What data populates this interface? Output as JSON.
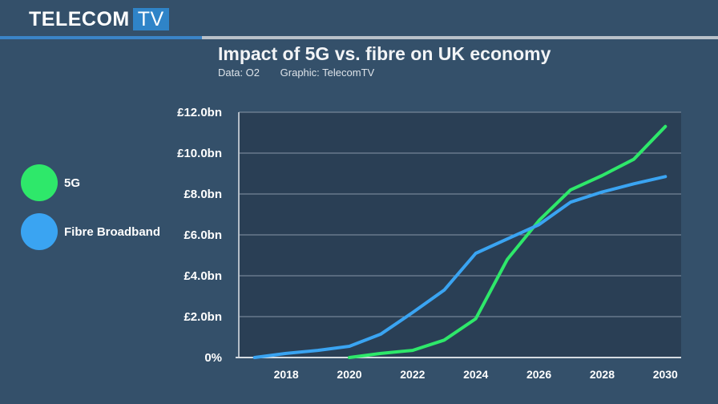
{
  "brand": {
    "name": "TELECOM",
    "suffix": "TV"
  },
  "header": {
    "title": "Impact of 5G vs. fibre on UK economy",
    "data_source": "Data: O2",
    "graphic_credit": "Graphic: TelecomTV"
  },
  "colors": {
    "background": "#34506a",
    "plot_background": "#2a3f55",
    "fiveg": "#2ee86a",
    "fibre": "#3aa4f2",
    "brand_accent": "#2f84c8"
  },
  "chart_data": {
    "type": "line",
    "ylim": [
      0,
      12
    ],
    "xlim": [
      2016.5,
      2030.5
    ],
    "y_ticks": [
      0,
      2,
      4,
      6,
      8,
      10,
      12
    ],
    "y_tick_labels": [
      "0%",
      "£2.0bn",
      "£4.0bn",
      "£6.0bn",
      "£8.0bn",
      "£10.0bn",
      "£12.0bn"
    ],
    "x_ticks": [
      2018,
      2020,
      2022,
      2024,
      2026,
      2028,
      2030
    ],
    "x_tick_labels": [
      "2018",
      "2020",
      "2022",
      "2024",
      "2026",
      "2028",
      "2030"
    ],
    "grid": true,
    "legend_position": "left",
    "series": [
      {
        "name": "5G",
        "color": "#2ee86a",
        "x": [
          2020,
          2021,
          2022,
          2023,
          2024,
          2025,
          2026,
          2027,
          2028,
          2029,
          2030
        ],
        "y": [
          0,
          0.2,
          0.35,
          0.85,
          1.9,
          4.8,
          6.7,
          8.2,
          8.9,
          9.7,
          11.3
        ]
      },
      {
        "name": "Fibre Broadband",
        "color": "#3aa4f2",
        "x": [
          2017,
          2018,
          2019,
          2020,
          2021,
          2022,
          2023,
          2024,
          2025,
          2026,
          2027,
          2028,
          2029,
          2030
        ],
        "y": [
          0,
          0.2,
          0.35,
          0.55,
          1.15,
          2.2,
          3.3,
          5.1,
          5.8,
          6.5,
          7.6,
          8.1,
          8.5,
          8.85
        ]
      }
    ]
  }
}
